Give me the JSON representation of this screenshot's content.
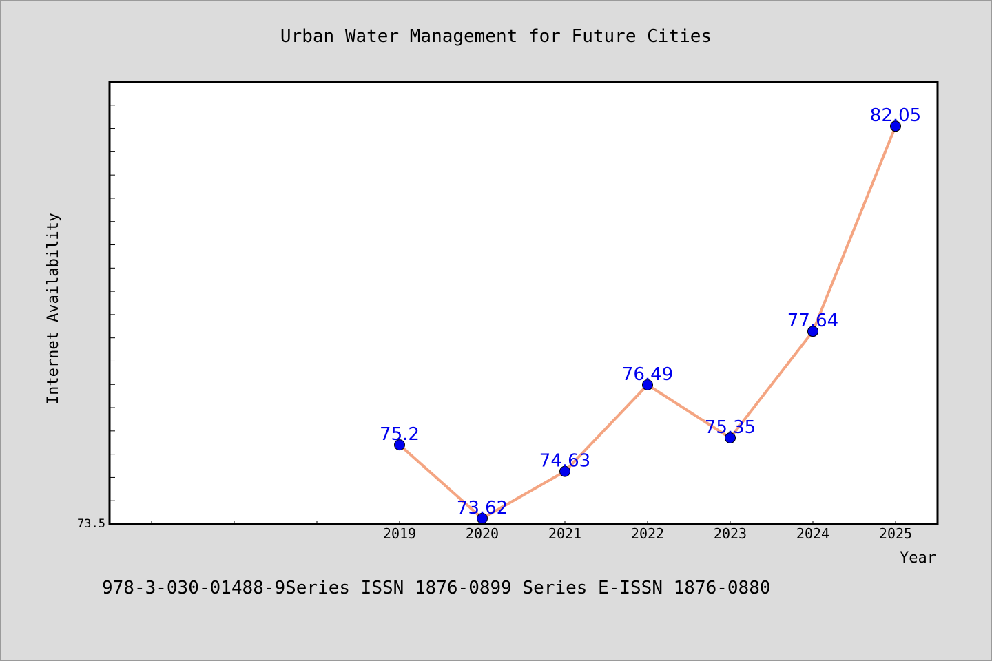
{
  "chart_data": {
    "type": "line",
    "title": "Urban Water Management for Future Cities",
    "xlabel": "Year",
    "ylabel": "Internet Availability",
    "categories": [
      "2019",
      "2020",
      "2021",
      "2022",
      "2023",
      "2024",
      "2025"
    ],
    "series": [
      {
        "values": [
          75.2,
          73.62,
          74.63,
          76.49,
          75.35,
          77.64,
          82.05
        ],
        "line_color": "#f4a582",
        "marker_color": "#0000ee"
      }
    ],
    "data_labels": [
      "75.2",
      "73.62",
      "74.63",
      "76.49",
      "75.35",
      "77.64",
      "82.05"
    ],
    "y_tick_labels": [
      "73.5"
    ],
    "ylim": [
      73.5,
      83.0
    ],
    "grid": false,
    "legend": "none"
  },
  "footnote": "978-3-030-01488-9Series ISSN 1876-0899 Series E-ISSN 1876-0880",
  "colors": {
    "background": "#dcdcdc",
    "plot_background": "#ffffff",
    "line": "#f4a582",
    "marker": "#0000ee",
    "data_label": "#0000ee"
  }
}
